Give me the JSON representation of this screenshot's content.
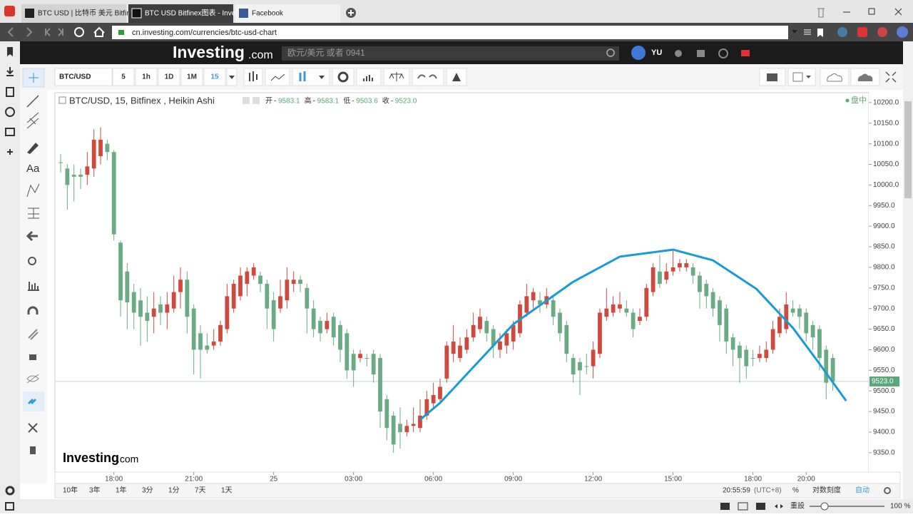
{
  "browser": {
    "tabs": [
      "BTC USD | 比特币 美元 Bitfin",
      "BTC USD Bitfinex图表 - Inves",
      "Facebook"
    ],
    "url": "cn.investing.com/currencies/btc-usd-chart",
    "reset": "重設",
    "zoom": "100 %"
  },
  "site": {
    "logo": "Investing",
    "logo_suffix": ".com",
    "search_placeholder": "欧元/美元 或者 0941",
    "user": "YU"
  },
  "toolbar": {
    "symbol": "BTC/USD",
    "intervals": [
      "5",
      "1h",
      "1D",
      "1M",
      "15"
    ],
    "active_interval": 4
  },
  "tools": {
    "text_tool": "Aa"
  },
  "chart_data": {
    "type": "candlestick",
    "title": "BTC/USD, 15, Bitfinex , Heikin Ashi",
    "legend": [
      {
        "name": "开",
        "value": "9583.1"
      },
      {
        "name": "高",
        "value": "9583.1"
      },
      {
        "name": "低",
        "value": "9503.6"
      },
      {
        "name": "收",
        "value": "9523.0"
      }
    ],
    "status": "盘中",
    "up_color": "#d0493d",
    "down_color": "#6aab84",
    "curve_color": "#1a9ad6",
    "open": [
      10055,
      10040,
      10025,
      10025,
      10025,
      10040,
      10070,
      10100,
      10080,
      9860,
      9790,
      9740,
      9720,
      9690,
      9680,
      9710,
      9690,
      9700,
      9740,
      9770,
      9700,
      9640,
      9610,
      9610,
      9620,
      9650,
      9700,
      9730,
      9760,
      9780,
      9780,
      9760,
      9720,
      9700,
      9720,
      9760,
      9770,
      9750,
      9700,
      9670,
      9650,
      9680,
      9660,
      9640,
      9590,
      9580,
      9580,
      9590,
      9580,
      9480,
      9440,
      9420,
      9400,
      9415,
      9410,
      9440,
      9470,
      9480,
      9530,
      9590,
      9580,
      9600,
      9630,
      9650,
      9670,
      9650,
      9600,
      9610,
      9620,
      9640,
      9690,
      9720,
      9720,
      9710,
      9720,
      9690,
      9660,
      9580,
      9570,
      9560,
      9560,
      9590,
      9680,
      9690,
      9700,
      9700,
      9690,
      9670,
      9680,
      9740,
      9790,
      9770,
      9790,
      9800,
      9800,
      9800,
      9780,
      9760,
      9740,
      9720,
      9700,
      9630,
      9610,
      9600,
      9580,
      9580,
      9580,
      9600,
      9640,
      9650,
      9700,
      9700,
      9690,
      9660,
      9650,
      9600,
      9580
    ],
    "high": [
      10075,
      10050,
      10050,
      10040,
      10080,
      10135,
      10140,
      10110,
      10085,
      9865,
      9810,
      9760,
      9750,
      9730,
      9740,
      9730,
      9740,
      9780,
      9800,
      9790,
      9710,
      9660,
      9640,
      9650,
      9670,
      9760,
      9770,
      9800,
      9800,
      9810,
      9790,
      9770,
      9740,
      9770,
      9800,
      9790,
      9780,
      9760,
      9720,
      9680,
      9690,
      9690,
      9670,
      9650,
      9600,
      9600,
      9590,
      9600,
      9590,
      9490,
      9450,
      9460,
      9430,
      9460,
      9480,
      9500,
      9520,
      9530,
      9620,
      9660,
      9630,
      9650,
      9690,
      9700,
      9680,
      9660,
      9640,
      9650,
      9670,
      9720,
      9760,
      9750,
      9740,
      9750,
      9730,
      9700,
      9670,
      9590,
      9580,
      9590,
      9620,
      9700,
      9750,
      9730,
      9740,
      9720,
      9700,
      9700,
      9760,
      9810,
      9830,
      9810,
      9840,
      9820,
      9820,
      9810,
      9790,
      9770,
      9750,
      9730,
      9710,
      9640,
      9620,
      9610,
      9600,
      9610,
      9620,
      9670,
      9700,
      9740,
      9720,
      9710,
      9700,
      9670,
      9660,
      9610,
      9590
    ],
    "low": [
      10030,
      9940,
      9960,
      9990,
      10000,
      10020,
      10050,
      10060,
      9865,
      9680,
      9650,
      9650,
      9610,
      9620,
      9640,
      9660,
      9650,
      9690,
      9700,
      9640,
      9540,
      9530,
      9590,
      9600,
      9610,
      9640,
      9690,
      9720,
      9730,
      9770,
      9740,
      9650,
      9620,
      9690,
      9700,
      9740,
      9740,
      9640,
      9630,
      9620,
      9640,
      9610,
      9570,
      9530,
      9510,
      9570,
      9560,
      9520,
      9410,
      9380,
      9350,
      9360,
      9390,
      9400,
      9400,
      9430,
      9460,
      9470,
      9520,
      9570,
      9570,
      9590,
      9620,
      9640,
      9620,
      9580,
      9580,
      9590,
      9600,
      9630,
      9680,
      9700,
      9690,
      9700,
      9660,
      9620,
      9570,
      9520,
      9490,
      9540,
      9530,
      9580,
      9670,
      9680,
      9690,
      9680,
      9630,
      9660,
      9670,
      9730,
      9750,
      9760,
      9780,
      9790,
      9790,
      9760,
      9700,
      9700,
      9680,
      9620,
      9590,
      9560,
      9520,
      9530,
      9560,
      9570,
      9570,
      9590,
      9630,
      9640,
      9680,
      9650,
      9620,
      9600,
      9550,
      9480,
      9500
    ],
    "close": [
      10055,
      10000,
      10020,
      10020,
      10045,
      10110,
      10110,
      10080,
      9880,
      9720,
      9715,
      9690,
      9680,
      9670,
      9700,
      9690,
      9710,
      9740,
      9770,
      9680,
      9600,
      9600,
      9600,
      9620,
      9660,
      9730,
      9760,
      9780,
      9790,
      9800,
      9760,
      9700,
      9650,
      9730,
      9770,
      9770,
      9760,
      9700,
      9650,
      9640,
      9670,
      9630,
      9600,
      9550,
      9550,
      9590,
      9580,
      9540,
      9450,
      9410,
      9370,
      9400,
      9415,
      9420,
      9440,
      9480,
      9490,
      9510,
      9610,
      9620,
      9610,
      9630,
      9660,
      9680,
      9640,
      9610,
      9620,
      9640,
      9660,
      9710,
      9730,
      9740,
      9710,
      9730,
      9680,
      9640,
      9590,
      9540,
      9550,
      9560,
      9600,
      9690,
      9700,
      9710,
      9710,
      9690,
      9650,
      9680,
      9750,
      9800,
      9760,
      9790,
      9800,
      9810,
      9810,
      9780,
      9740,
      9730,
      9700,
      9660,
      9620,
      9600,
      9580,
      9560,
      9580,
      9590,
      9600,
      9650,
      9680,
      9710,
      9690,
      9680,
      9640,
      9630,
      9580,
      9520,
      9523
    ],
    "xlim": [
      -0.86,
      121.4
    ],
    "xticks": [
      {
        "value": 8,
        "label": "18:00"
      },
      {
        "value": 20,
        "label": "21:00"
      },
      {
        "value": 32,
        "label": "25"
      },
      {
        "value": 44,
        "label": "03:00"
      },
      {
        "value": 56,
        "label": "06:00"
      },
      {
        "value": 68,
        "label": "09:00"
      },
      {
        "value": 80,
        "label": "12:00"
      },
      {
        "value": 92,
        "label": "15:00"
      },
      {
        "value": 104,
        "label": "18:00"
      },
      {
        "value": 112,
        "label": "20:00"
      }
    ],
    "ylim": [
      9303,
      10224
    ],
    "yticks": [
      {
        "value": 9350,
        "label": "9350.0"
      },
      {
        "value": 9400,
        "label": "9400.0"
      },
      {
        "value": 9450,
        "label": "9450.0"
      },
      {
        "value": 9500,
        "label": "9500.0"
      },
      {
        "value": 9550,
        "label": "9550.0"
      },
      {
        "value": 9600,
        "label": "9600.0"
      },
      {
        "value": 9650,
        "label": "9650.0"
      },
      {
        "value": 9700,
        "label": "9700.0"
      },
      {
        "value": 9750,
        "label": "9750.0"
      },
      {
        "value": 9800,
        "label": "9800.0"
      },
      {
        "value": 9850,
        "label": "9850.0"
      },
      {
        "value": 9900,
        "label": "9900.0"
      },
      {
        "value": 9950,
        "label": "9950.0"
      },
      {
        "value": 10000,
        "label": "10000.0"
      },
      {
        "value": 10050,
        "label": "10050.0"
      },
      {
        "value": 10100,
        "label": "10100.0"
      },
      {
        "value": 10150,
        "label": "10150.0"
      },
      {
        "value": 10200,
        "label": "10200.0"
      }
    ],
    "last_price": {
      "value": 9523,
      "label": "9523.0",
      "color": "#5aa77a"
    },
    "curve": {
      "x": [
        54,
        57,
        68,
        77,
        84,
        92,
        98,
        104.5,
        110,
        114,
        118
      ],
      "values": [
        9430,
        9471,
        9662,
        9765,
        9826,
        9843,
        9817,
        9748,
        9653,
        9566,
        9476
      ]
    },
    "watermark": {
      "name": "Investing",
      "suffix": ".com"
    }
  },
  "bottom": {
    "ranges": [
      "10年",
      "3年",
      "1年",
      "3分",
      "1分",
      "7天",
      "1天"
    ],
    "time": "20:55:59",
    "timezone": "(UTC+8)",
    "percent": "%",
    "log_scale": "对数刻度",
    "auto": "自动"
  }
}
